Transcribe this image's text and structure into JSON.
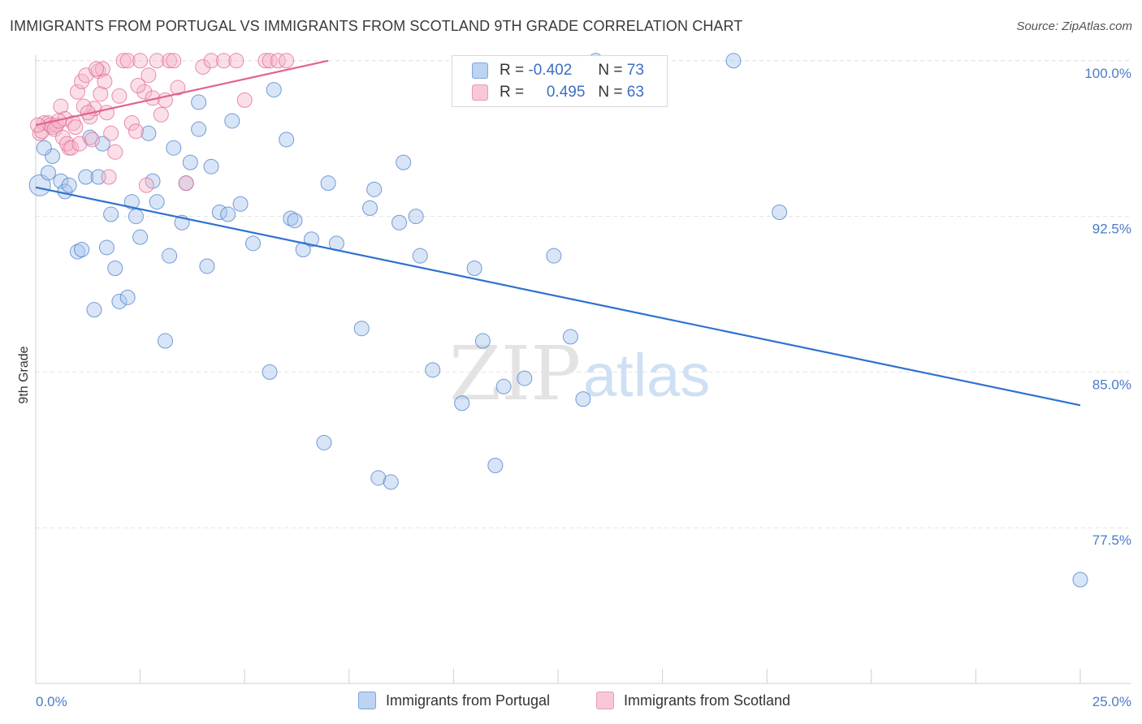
{
  "title": "IMMIGRANTS FROM PORTUGAL VS IMMIGRANTS FROM SCOTLAND 9TH GRADE CORRELATION CHART",
  "source": "Source: ZipAtlas.com",
  "watermark": {
    "zip": "ZIP",
    "atlas": "atlas"
  },
  "legend": {
    "r_label": "R =",
    "n_label": "N =",
    "rows": [
      {
        "r": "-0.402",
        "n": "73"
      },
      {
        "r": "0.495",
        "n": "63"
      }
    ]
  },
  "chart_data": {
    "type": "scatter",
    "title": "IMMIGRANTS FROM PORTUGAL VS IMMIGRANTS FROM SCOTLAND 9TH GRADE CORRELATION CHART",
    "xlabel": "",
    "ylabel": "9th Grade",
    "xlim": [
      0,
      25
    ],
    "ylim": [
      70,
      100.5
    ],
    "x_tick_labels": [
      "0.0%",
      "25.0%"
    ],
    "y_ticks": [
      77.5,
      85.0,
      92.5,
      100.0
    ],
    "y_tick_labels": [
      "77.5%",
      "85.0%",
      "92.5%",
      "100.0%"
    ],
    "grid": true,
    "legend_placement": "top-center",
    "series": [
      {
        "name": "Immigrants from Portugal",
        "color": "#4a7cc9",
        "fill": "#a9c6ee",
        "trend": {
          "x": [
            0,
            25
          ],
          "y": [
            93.9,
            83.4
          ]
        },
        "points": [
          [
            0.1,
            94.0
          ],
          [
            0.3,
            94.6
          ],
          [
            0.4,
            95.4
          ],
          [
            0.6,
            94.2
          ],
          [
            0.7,
            93.7
          ],
          [
            0.8,
            94.0
          ],
          [
            1.0,
            90.8
          ],
          [
            1.1,
            90.9
          ],
          [
            1.2,
            94.4
          ],
          [
            1.4,
            88.0
          ],
          [
            1.5,
            94.4
          ],
          [
            1.6,
            96.0
          ],
          [
            1.7,
            91.0
          ],
          [
            1.8,
            92.6
          ],
          [
            1.9,
            90.0
          ],
          [
            2.0,
            88.4
          ],
          [
            2.2,
            88.6
          ],
          [
            2.3,
            93.2
          ],
          [
            2.4,
            92.5
          ],
          [
            2.5,
            91.5
          ],
          [
            2.7,
            96.5
          ],
          [
            2.8,
            94.2
          ],
          [
            2.9,
            93.2
          ],
          [
            3.1,
            86.5
          ],
          [
            3.2,
            90.6
          ],
          [
            3.3,
            95.8
          ],
          [
            3.5,
            92.2
          ],
          [
            3.6,
            94.1
          ],
          [
            3.7,
            95.1
          ],
          [
            3.9,
            96.7
          ],
          [
            3.9,
            98.0
          ],
          [
            4.1,
            90.1
          ],
          [
            4.2,
            94.9
          ],
          [
            4.4,
            92.7
          ],
          [
            4.6,
            92.6
          ],
          [
            4.7,
            97.1
          ],
          [
            4.9,
            93.1
          ],
          [
            5.2,
            91.2
          ],
          [
            5.6,
            85.0
          ],
          [
            5.7,
            98.6
          ],
          [
            6.0,
            96.2
          ],
          [
            6.1,
            92.4
          ],
          [
            6.2,
            92.3
          ],
          [
            6.4,
            90.9
          ],
          [
            6.6,
            91.4
          ],
          [
            6.9,
            81.6
          ],
          [
            7.0,
            94.1
          ],
          [
            7.2,
            91.2
          ],
          [
            7.8,
            87.1
          ],
          [
            8.0,
            92.9
          ],
          [
            8.1,
            93.8
          ],
          [
            8.2,
            79.9
          ],
          [
            8.5,
            79.7
          ],
          [
            8.7,
            92.2
          ],
          [
            8.8,
            95.1
          ],
          [
            9.1,
            92.5
          ],
          [
            9.2,
            90.6
          ],
          [
            9.5,
            85.1
          ],
          [
            10.2,
            83.5
          ],
          [
            10.5,
            90.0
          ],
          [
            10.7,
            86.5
          ],
          [
            11.0,
            80.5
          ],
          [
            11.2,
            84.3
          ],
          [
            11.7,
            84.7
          ],
          [
            12.4,
            90.6
          ],
          [
            12.8,
            86.7
          ],
          [
            13.1,
            83.7
          ],
          [
            13.4,
            100.0
          ],
          [
            16.7,
            100.0
          ],
          [
            17.8,
            92.7
          ],
          [
            25.0,
            75.0
          ],
          [
            0.2,
            95.8
          ],
          [
            1.3,
            96.3
          ]
        ]
      },
      {
        "name": "Immigrants from Scotland",
        "color": "#e26a93",
        "fill": "#f5b9cc",
        "trend": {
          "x": [
            0,
            7.0
          ],
          "y": [
            96.9,
            100.0
          ]
        },
        "points": [
          [
            0.1,
            96.5
          ],
          [
            0.2,
            97.0
          ],
          [
            0.3,
            97.0
          ],
          [
            0.4,
            96.8
          ],
          [
            0.5,
            96.9
          ],
          [
            0.6,
            97.8
          ],
          [
            0.7,
            97.2
          ],
          [
            0.8,
            95.8
          ],
          [
            0.9,
            97.0
          ],
          [
            1.0,
            98.5
          ],
          [
            1.1,
            99.0
          ],
          [
            1.2,
            99.3
          ],
          [
            1.3,
            97.3
          ],
          [
            1.4,
            97.7
          ],
          [
            1.5,
            99.5
          ],
          [
            1.6,
            99.6
          ],
          [
            1.7,
            97.5
          ],
          [
            1.8,
            96.5
          ],
          [
            1.9,
            95.6
          ],
          [
            2.0,
            98.3
          ],
          [
            2.1,
            100.0
          ],
          [
            2.2,
            100.0
          ],
          [
            2.3,
            97.0
          ],
          [
            2.4,
            96.6
          ],
          [
            2.5,
            100.0
          ],
          [
            2.6,
            98.5
          ],
          [
            2.7,
            99.3
          ],
          [
            2.8,
            98.2
          ],
          [
            2.9,
            100.0
          ],
          [
            3.0,
            97.4
          ],
          [
            3.1,
            98.1
          ],
          [
            3.2,
            100.0
          ],
          [
            3.3,
            100.0
          ],
          [
            3.4,
            98.7
          ],
          [
            3.6,
            94.1
          ],
          [
            4.0,
            99.7
          ],
          [
            4.2,
            100.0
          ],
          [
            4.5,
            100.0
          ],
          [
            4.8,
            100.0
          ],
          [
            5.0,
            98.1
          ],
          [
            5.5,
            100.0
          ],
          [
            5.6,
            100.0
          ],
          [
            5.8,
            100.0
          ],
          [
            6.0,
            100.0
          ],
          [
            0.15,
            96.6
          ],
          [
            0.35,
            96.9
          ],
          [
            0.45,
            96.7
          ],
          [
            0.55,
            97.1
          ],
          [
            0.65,
            96.3
          ],
          [
            0.75,
            96.0
          ],
          [
            0.85,
            95.8
          ],
          [
            0.95,
            96.8
          ],
          [
            1.05,
            96.0
          ],
          [
            1.15,
            97.8
          ],
          [
            1.25,
            97.5
          ],
          [
            1.35,
            96.2
          ],
          [
            1.45,
            99.6
          ],
          [
            1.55,
            98.4
          ],
          [
            1.65,
            99.0
          ],
          [
            1.75,
            94.4
          ],
          [
            2.45,
            98.8
          ],
          [
            2.65,
            94.0
          ],
          [
            0.05,
            96.9
          ]
        ]
      }
    ]
  }
}
